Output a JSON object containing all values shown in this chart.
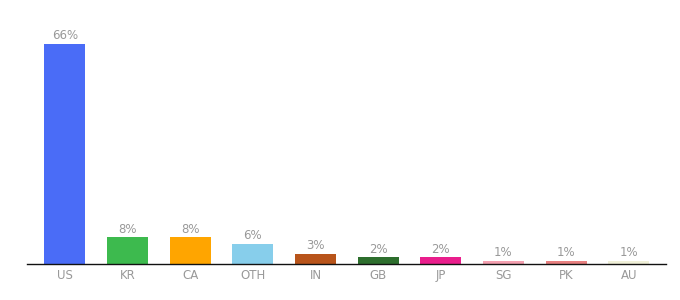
{
  "categories": [
    "US",
    "KR",
    "CA",
    "OTH",
    "IN",
    "GB",
    "JP",
    "SG",
    "PK",
    "AU"
  ],
  "values": [
    66,
    8,
    8,
    6,
    3,
    2,
    2,
    1,
    1,
    1
  ],
  "labels": [
    "66%",
    "8%",
    "8%",
    "6%",
    "3%",
    "2%",
    "2%",
    "1%",
    "1%",
    "1%"
  ],
  "colors": [
    "#4a6cf7",
    "#3dba4e",
    "#ffa500",
    "#87ceeb",
    "#b8541a",
    "#2d6e2d",
    "#e91e8c",
    "#f4a0b0",
    "#e88080",
    "#f0f0d8"
  ],
  "background_color": "#ffffff",
  "ylim": [
    0,
    72
  ],
  "label_fontsize": 8.5,
  "tick_fontsize": 8.5,
  "bar_width": 0.65
}
